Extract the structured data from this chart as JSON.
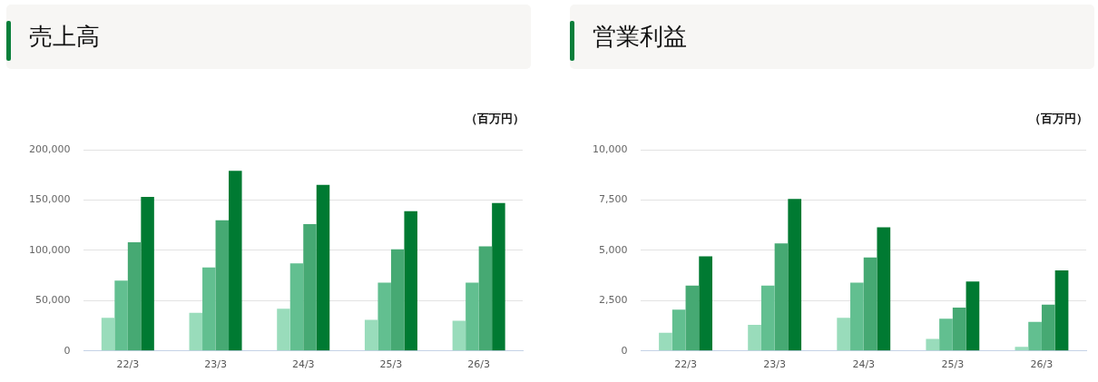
{
  "chart_data": [
    {
      "type": "bar",
      "title": "売上高",
      "ylabel": "（百万円）",
      "categories": [
        "22/3",
        "23/3",
        "24/3",
        "25/3",
        "26/3"
      ],
      "series": [
        {
          "color": "#99dcbb",
          "values": [
            33000,
            38000,
            42000,
            31000,
            30000
          ]
        },
        {
          "color": "#62bf90",
          "values": [
            70000,
            83000,
            87000,
            68000,
            68000
          ]
        },
        {
          "color": "#46a973",
          "values": [
            108000,
            130000,
            126000,
            101000,
            104000
          ]
        },
        {
          "color": "#007a32",
          "values": [
            153000,
            179000,
            165000,
            139000,
            147000
          ]
        }
      ],
      "ylim": [
        0,
        200000
      ],
      "yticks": [
        {
          "value": 0,
          "label": "0"
        },
        {
          "value": 50000,
          "label": "50,000"
        },
        {
          "value": 100000,
          "label": "100,000"
        },
        {
          "value": 150000,
          "label": "150,000"
        },
        {
          "value": 200000,
          "label": "200,000"
        }
      ],
      "grid": "y"
    },
    {
      "type": "bar",
      "title": "営業利益",
      "ylabel": "（百万円）",
      "categories": [
        "22/3",
        "23/3",
        "24/3",
        "25/3",
        "26/3"
      ],
      "series": [
        {
          "color": "#99dcbb",
          "values": [
            900,
            1300,
            1650,
            600,
            200
          ]
        },
        {
          "color": "#62bf90",
          "values": [
            2050,
            3250,
            3400,
            1600,
            1450
          ]
        },
        {
          "color": "#46a973",
          "values": [
            3250,
            5350,
            4650,
            2150,
            2300
          ]
        },
        {
          "color": "#007a32",
          "values": [
            4700,
            7550,
            6150,
            3450,
            4000
          ]
        }
      ],
      "ylim": [
        0,
        10000
      ],
      "yticks": [
        {
          "value": 0,
          "label": "0"
        },
        {
          "value": 2500,
          "label": "2,500"
        },
        {
          "value": 5000,
          "label": "5,000"
        },
        {
          "value": 7500,
          "label": "7,500"
        },
        {
          "value": 10000,
          "label": "10,000"
        }
      ],
      "grid": "y"
    }
  ]
}
